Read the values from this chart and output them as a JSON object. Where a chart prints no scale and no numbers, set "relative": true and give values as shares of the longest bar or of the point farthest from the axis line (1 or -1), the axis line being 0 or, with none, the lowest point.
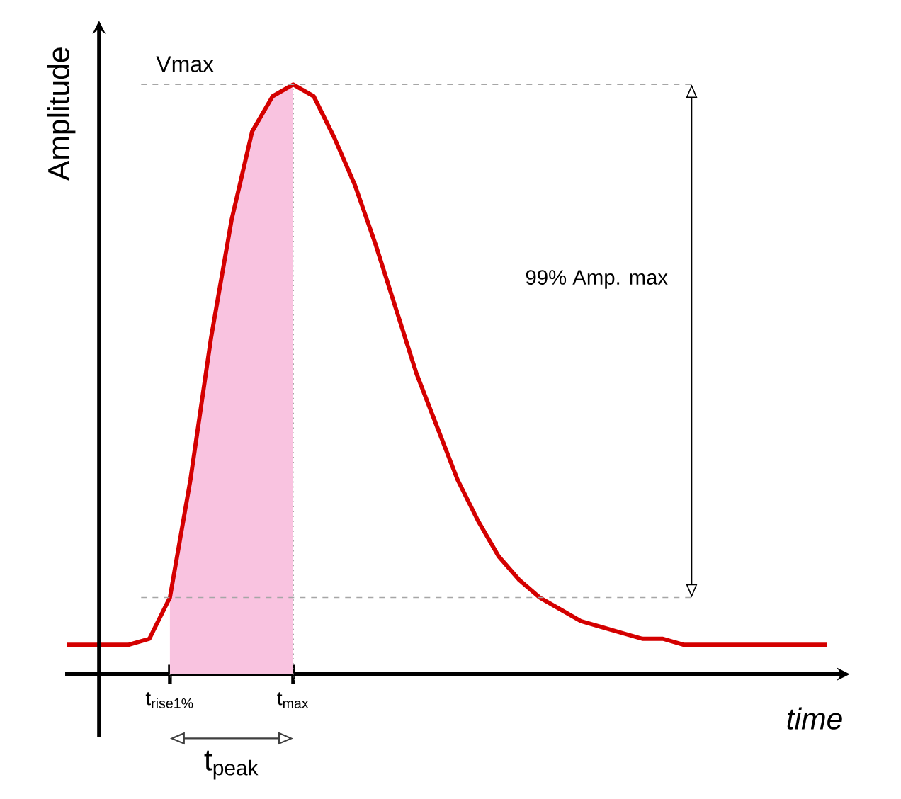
{
  "chart_data": {
    "type": "line",
    "relative": true,
    "xlabel": "*time*",
    "ylabel": "Amplitude",
    "categories": [
      null,
      null,
      null,
      null,
      null,
      "t$_{rise1%}$",
      null,
      null,
      null,
      null,
      null,
      "t$_{max}$",
      null,
      null,
      null,
      null,
      null,
      null,
      null,
      null,
      null,
      null,
      null,
      null,
      null,
      null,
      null,
      null,
      null,
      null,
      null,
      null,
      null,
      null,
      null,
      null,
      null,
      null
    ],
    "series": [
      {
        "type": "area",
        "color": "#f9c3e0",
        "values": [
          null,
          null,
          null,
          null,
          null,
          0.13,
          0.33,
          0.57,
          0.77,
          0.92,
          0.98,
          1.0,
          null,
          null,
          null,
          null,
          null,
          null,
          null,
          null,
          null,
          null,
          null,
          null,
          null,
          null,
          null,
          null,
          null,
          null,
          null,
          null,
          null,
          null,
          null,
          null,
          null,
          null
        ]
      },
      {
        "color": "#d40000",
        "values": [
          0.05,
          0.05,
          0.05,
          0.05,
          0.06,
          0.13,
          0.33,
          0.57,
          0.77,
          0.92,
          0.98,
          1.0,
          0.98,
          0.91,
          0.83,
          0.73,
          0.62,
          0.51,
          0.42,
          0.33,
          0.26,
          0.2,
          0.16,
          0.13,
          0.11,
          0.09,
          0.08,
          0.07,
          0.06,
          0.06,
          0.05,
          0.05,
          0.05,
          0.05,
          0.05,
          0.05,
          0.05,
          0.05
        ]
      }
    ],
    "ref_lines": [
      {
        "axis": "y",
        "value": 1.0,
        "label": "Vmax",
        "line_style": "dashed"
      },
      {
        "axis": "y",
        "value": 0.13,
        "line_style": "dashed"
      },
      {
        "axis": "x",
        "value": "t$_{max}$",
        "line_style": "dotted"
      }
    ],
    "annotations": [
      "99% Amp. max",
      "t$_{peak}$"
    ],
    "grid": false,
    "marker": "none",
    "line_style": "solid"
  }
}
